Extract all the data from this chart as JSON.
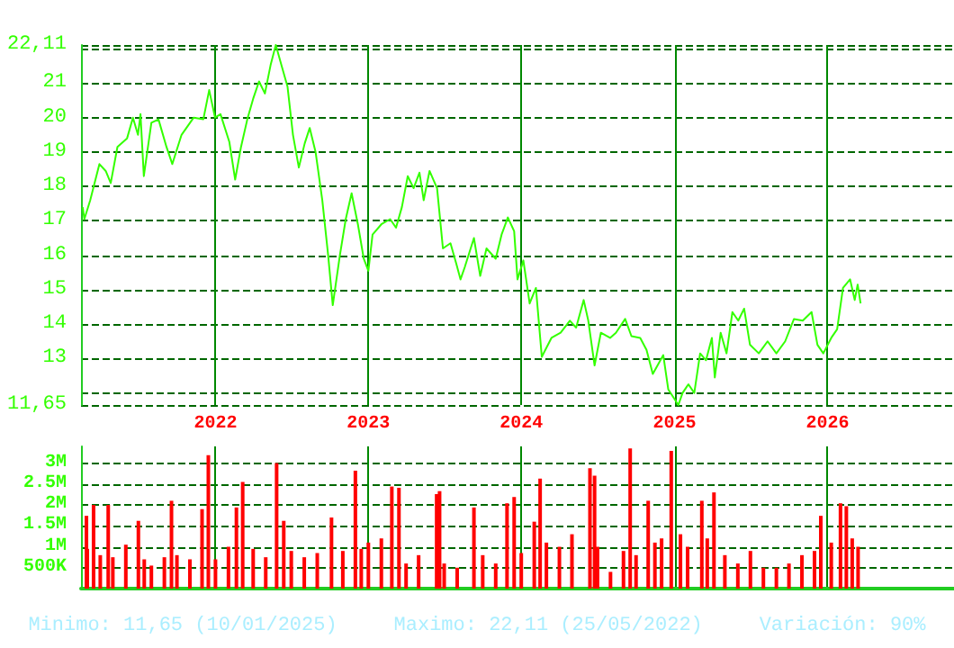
{
  "chart_data": [
    {
      "type": "line",
      "xlim": [
        "2021-02-14",
        "2026-10-30"
      ],
      "ylim": [
        11.65,
        22.11
      ],
      "xticks": [
        {
          "value": "2022-01-01",
          "label": "2022"
        },
        {
          "value": "2023-01-01",
          "label": "2023"
        },
        {
          "value": "2024-01-01",
          "label": "2024"
        },
        {
          "value": "2025-01-01",
          "label": "2025"
        },
        {
          "value": "2026-01-01",
          "label": "2026"
        }
      ],
      "yticks": [
        {
          "value": 11.65,
          "label": "11,65"
        },
        {
          "value": 12,
          "label": null
        },
        13,
        14,
        15,
        16,
        17,
        18,
        19,
        20,
        21,
        {
          "value": 22,
          "label": null
        },
        {
          "value": 22.11,
          "label": "22,11"
        }
      ],
      "grid": true,
      "marker": "none",
      "line_style": "solid",
      "series": [
        {
          "color": "#33ff00",
          "x": [
            "2021-02-18",
            "2021-02-22",
            "2021-03-08",
            "2021-03-30",
            "2021-04-14",
            "2021-04-26",
            "2021-05-12",
            "2021-06-04",
            "2021-06-18",
            "2021-06-30",
            "2021-07-06",
            "2021-07-14",
            "2021-08-01",
            "2021-08-18",
            "2021-09-06",
            "2021-09-20",
            "2021-10-12",
            "2021-11-10",
            "2021-12-03",
            "2021-12-17",
            "2021-12-31",
            "2022-01-13",
            "2022-02-03",
            "2022-02-17",
            "2022-03-03",
            "2022-03-18",
            "2022-04-01",
            "2022-04-15",
            "2022-04-29",
            "2022-05-13",
            "2022-05-25",
            "2022-06-08",
            "2022-06-22",
            "2022-07-05",
            "2022-07-19",
            "2022-08-02",
            "2022-08-14",
            "2022-08-28",
            "2022-09-13",
            "2022-09-27",
            "2022-10-08",
            "2022-10-25",
            "2022-11-08",
            "2022-11-22",
            "2022-12-07",
            "2022-12-21",
            "2023-01-01",
            "2023-01-11",
            "2023-02-01",
            "2023-02-22",
            "2023-03-08",
            "2023-03-22",
            "2023-04-05",
            "2023-04-19",
            "2023-05-03",
            "2023-05-13",
            "2023-05-27",
            "2023-06-14",
            "2023-06-28",
            "2023-07-16",
            "2023-07-30",
            "2023-08-09",
            "2023-08-19",
            "2023-09-10",
            "2023-09-25",
            "2023-10-10",
            "2023-11-01",
            "2023-11-15",
            "2023-11-30",
            "2023-12-15",
            "2023-12-23",
            "2024-01-06",
            "2024-01-21",
            "2024-02-05",
            "2024-02-19",
            "2024-03-13",
            "2024-04-04",
            "2024-04-26",
            "2024-05-11",
            "2024-05-29",
            "2024-06-09",
            "2024-06-24",
            "2024-07-09",
            "2024-07-31",
            "2024-08-14",
            "2024-09-05",
            "2024-09-20",
            "2024-10-11",
            "2024-10-26",
            "2024-11-10",
            "2024-12-05",
            "2024-12-17",
            "2025-01-10",
            "2025-01-20",
            "2025-02-03",
            "2025-02-17",
            "2025-03-03",
            "2025-03-17",
            "2025-03-31",
            "2025-04-07",
            "2025-04-21",
            "2025-05-05",
            "2025-05-19",
            "2025-06-02",
            "2025-06-16",
            "2025-06-30",
            "2025-07-21",
            "2025-08-11",
            "2025-09-01",
            "2025-09-22",
            "2025-10-13",
            "2025-11-03",
            "2025-11-24",
            "2025-12-08",
            "2025-12-22",
            "2026-01-10",
            "2026-01-24",
            "2026-02-07",
            "2026-02-24",
            "2026-03-07",
            "2026-03-14",
            "2026-03-21"
          ],
          "values": [
            17.4,
            17.05,
            17.6,
            18.65,
            18.45,
            18.1,
            19.15,
            19.4,
            20.0,
            19.5,
            20.1,
            18.3,
            19.85,
            19.95,
            19.15,
            18.65,
            19.5,
            20.0,
            19.95,
            20.8,
            20.0,
            20.1,
            19.3,
            18.2,
            19.15,
            19.95,
            20.55,
            21.05,
            20.7,
            21.55,
            22.11,
            21.5,
            20.9,
            19.5,
            18.55,
            19.25,
            19.7,
            19.0,
            17.6,
            16.0,
            14.55,
            16.0,
            17.05,
            17.8,
            16.9,
            15.9,
            15.55,
            16.6,
            16.9,
            17.05,
            16.8,
            17.4,
            18.3,
            17.95,
            18.4,
            17.6,
            18.45,
            17.95,
            16.2,
            16.35,
            15.75,
            15.3,
            15.65,
            16.5,
            15.4,
            16.2,
            15.9,
            16.6,
            17.1,
            16.7,
            15.3,
            15.85,
            14.6,
            15.05,
            13.05,
            13.6,
            13.75,
            14.1,
            13.9,
            14.7,
            14.1,
            12.8,
            13.75,
            13.6,
            13.75,
            14.15,
            13.65,
            13.6,
            13.25,
            12.55,
            13.1,
            12.1,
            11.65,
            12.0,
            12.25,
            12.0,
            13.15,
            12.95,
            13.6,
            12.45,
            13.75,
            13.15,
            14.35,
            14.1,
            14.45,
            13.4,
            13.15,
            13.5,
            13.15,
            13.5,
            14.15,
            14.1,
            14.35,
            13.4,
            13.15,
            13.6,
            13.85,
            15.05,
            15.3,
            14.7,
            15.15,
            14.6
          ]
        }
      ]
    },
    {
      "type": "bar",
      "xlim": [
        "2021-02-14",
        "2026-10-30"
      ],
      "ylim": [
        0,
        3400000
      ],
      "xticks": [
        {
          "value": "2022-01-01",
          "label": null
        },
        {
          "value": "2023-01-01",
          "label": null
        },
        {
          "value": "2024-01-01",
          "label": null
        },
        {
          "value": "2025-01-01",
          "label": null
        },
        {
          "value": "2026-01-01",
          "label": null
        }
      ],
      "yticks": [
        {
          "value": 500000,
          "label": "500K"
        },
        {
          "value": 1000000,
          "label": "1M"
        },
        {
          "value": 1500000,
          "label": "1.5M"
        },
        {
          "value": 2000000,
          "label": "2M"
        },
        {
          "value": 2500000,
          "label": "2.5M"
        },
        {
          "value": 3000000,
          "label": "3M"
        }
      ],
      "grid": true,
      "tick_labels": "y",
      "annotations": [
        "Minimo: 11,65 (10/01/2025)",
        "Maximo: 22,11 (25/05/2022)",
        "Variación: 90%"
      ],
      "series": [
        {
          "color": "#ff0000",
          "x": [
            "2021-02-27",
            "2021-03-01",
            "2021-03-16",
            "2021-04-01",
            "2021-04-20",
            "2021-05-01",
            "2021-06-01",
            "2021-07-01",
            "2021-07-15",
            "2021-08-01",
            "2021-09-01",
            "2021-09-18",
            "2021-10-01",
            "2021-11-01",
            "2021-11-30",
            "2021-12-15",
            "2022-01-01",
            "2022-02-01",
            "2022-02-20",
            "2022-03-07",
            "2022-04-01",
            "2022-05-01",
            "2022-05-27",
            "2022-06-13",
            "2022-07-01",
            "2022-08-01",
            "2022-09-01",
            "2022-10-05",
            "2022-11-01",
            "2022-12-01",
            "2022-12-15",
            "2023-01-01",
            "2023-02-01",
            "2023-02-26",
            "2023-03-15",
            "2023-04-01",
            "2023-05-01",
            "2023-06-13",
            "2023-06-20",
            "2023-07-01",
            "2023-08-01",
            "2023-09-10",
            "2023-10-01",
            "2023-11-01",
            "2023-11-28",
            "2023-12-15",
            "2024-01-01",
            "2024-02-01",
            "2024-02-15",
            "2024-03-01",
            "2024-04-01",
            "2024-05-01",
            "2024-06-13",
            "2024-06-24",
            "2024-07-01",
            "2024-08-01",
            "2024-09-01",
            "2024-09-17",
            "2024-10-01",
            "2024-10-30",
            "2024-11-15",
            "2024-12-01",
            "2024-12-24",
            "2025-01-15",
            "2025-02-01",
            "2025-03-07",
            "2025-03-20",
            "2025-04-05",
            "2025-05-01",
            "2025-06-01",
            "2025-07-01",
            "2025-08-01",
            "2025-09-01",
            "2025-10-01",
            "2025-11-01",
            "2025-12-01",
            "2025-12-16",
            "2026-01-10",
            "2026-02-01",
            "2026-02-15",
            "2026-03-01",
            "2026-03-15"
          ],
          "values": [
            1740000,
            950000,
            2000000,
            800000,
            2000000,
            750000,
            1050000,
            1620000,
            700000,
            550000,
            750000,
            2100000,
            800000,
            700000,
            1900000,
            3190000,
            700000,
            1000000,
            1940000,
            2550000,
            950000,
            750000,
            3000000,
            1620000,
            900000,
            750000,
            850000,
            1700000,
            900000,
            2820000,
            950000,
            1100000,
            1200000,
            2440000,
            2410000,
            600000,
            800000,
            2260000,
            2330000,
            600000,
            500000,
            1940000,
            800000,
            600000,
            2040000,
            2190000,
            850000,
            1600000,
            2630000,
            1100000,
            1000000,
            1300000,
            2880000,
            2700000,
            1000000,
            400000,
            900000,
            3350000,
            800000,
            2100000,
            1100000,
            1200000,
            3290000,
            1300000,
            1000000,
            2100000,
            1200000,
            2300000,
            800000,
            600000,
            900000,
            500000,
            500000,
            600000,
            800000,
            900000,
            1740000,
            1100000,
            2040000,
            1970000,
            1200000,
            1000000
          ]
        }
      ]
    }
  ]
}
